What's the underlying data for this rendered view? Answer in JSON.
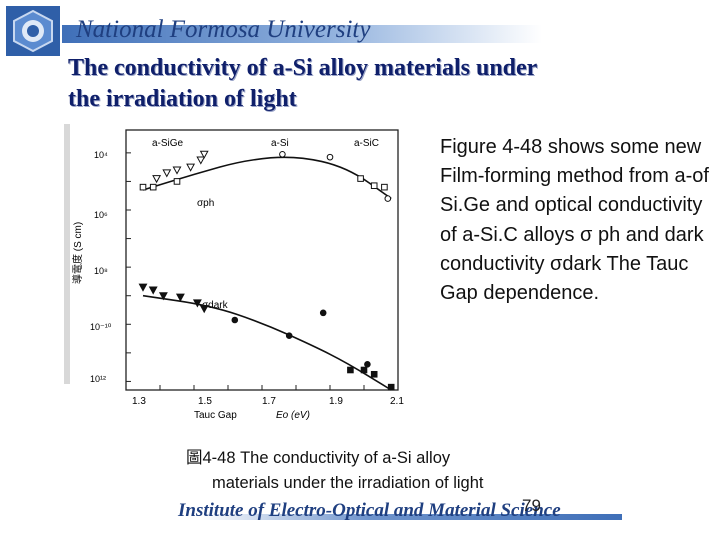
{
  "header": {
    "university": "National Formosa University"
  },
  "title": "The conductivity of a-Si alloy materials under\nthe irradiation of light",
  "description": "Figure 4-48 shows some new Film-forming method from a-of Si.Ge and optical conductivity of a-Si.C alloys σ ph and dark conductivity σdark The Tauc Gap dependence.",
  "caption": {
    "line1": "圖4-48  The conductivity of a-Si alloy",
    "line2": "materials under the irradiation of light"
  },
  "footer": {
    "institute": "Institute of Electro-Optical and Material Science",
    "page_number": "79"
  },
  "colors": {
    "header": "#1f3f80",
    "title": "#0f1f6a"
  },
  "chart_data": {
    "type": "scatter",
    "xlabel": "Tauc Gap",
    "xlabel_symbol": "Eo (eV)",
    "ylabel": "導電度 (S cm)",
    "x_ticks": [
      "1.3",
      "1.5",
      "1.7",
      "1.9",
      "2.1"
    ],
    "y_ticks": [
      "10⁴",
      "10⁶",
      "10⁸",
      "10⁻¹⁰",
      "10¹²"
    ],
    "region_labels": [
      "a-SiGe",
      "a-Si",
      "a-SiC"
    ],
    "series": [
      {
        "name": "σph",
        "open_triangles": [
          [
            1.39,
            -4.9
          ],
          [
            1.42,
            -4.7
          ],
          [
            1.45,
            -4.6
          ],
          [
            1.49,
            -4.5
          ],
          [
            1.52,
            -4.25
          ],
          [
            1.53,
            -4.05
          ]
        ],
        "open_squares": [
          [
            1.35,
            -5.2
          ],
          [
            1.38,
            -5.2
          ],
          [
            1.45,
            -5.0
          ],
          [
            1.99,
            -4.9
          ],
          [
            2.03,
            -5.15
          ],
          [
            2.06,
            -5.2
          ]
        ],
        "open_circles": [
          [
            1.76,
            -4.05
          ],
          [
            1.9,
            -4.15
          ],
          [
            2.07,
            -5.6
          ]
        ],
        "curve": [
          [
            1.35,
            -5.3
          ],
          [
            1.5,
            -4.75
          ],
          [
            1.65,
            -4.25
          ],
          [
            1.8,
            -4.1
          ],
          [
            1.95,
            -4.5
          ],
          [
            2.08,
            -5.6
          ]
        ]
      },
      {
        "name": "σdark",
        "filled_triangles": [
          [
            1.35,
            -8.7
          ],
          [
            1.38,
            -8.8
          ],
          [
            1.41,
            -9.0
          ],
          [
            1.46,
            -9.05
          ],
          [
            1.51,
            -9.25
          ],
          [
            1.53,
            -9.45
          ]
        ],
        "filled_squares": [
          [
            1.96,
            -11.6
          ],
          [
            2.0,
            -11.6
          ],
          [
            2.03,
            -11.75
          ],
          [
            2.08,
            -12.2
          ]
        ],
        "filled_circles": [
          [
            1.62,
            -9.85
          ],
          [
            1.78,
            -10.4
          ],
          [
            1.88,
            -9.6
          ],
          [
            2.01,
            -11.4
          ]
        ],
        "curve": [
          [
            1.35,
            -9.0
          ],
          [
            1.55,
            -9.35
          ],
          [
            1.7,
            -9.95
          ],
          [
            1.85,
            -10.75
          ],
          [
            1.95,
            -11.35
          ],
          [
            2.08,
            -12.3
          ]
        ]
      }
    ],
    "xlim": [
      1.3,
      2.1
    ],
    "ylim": [
      -12.3,
      -3.2
    ]
  }
}
